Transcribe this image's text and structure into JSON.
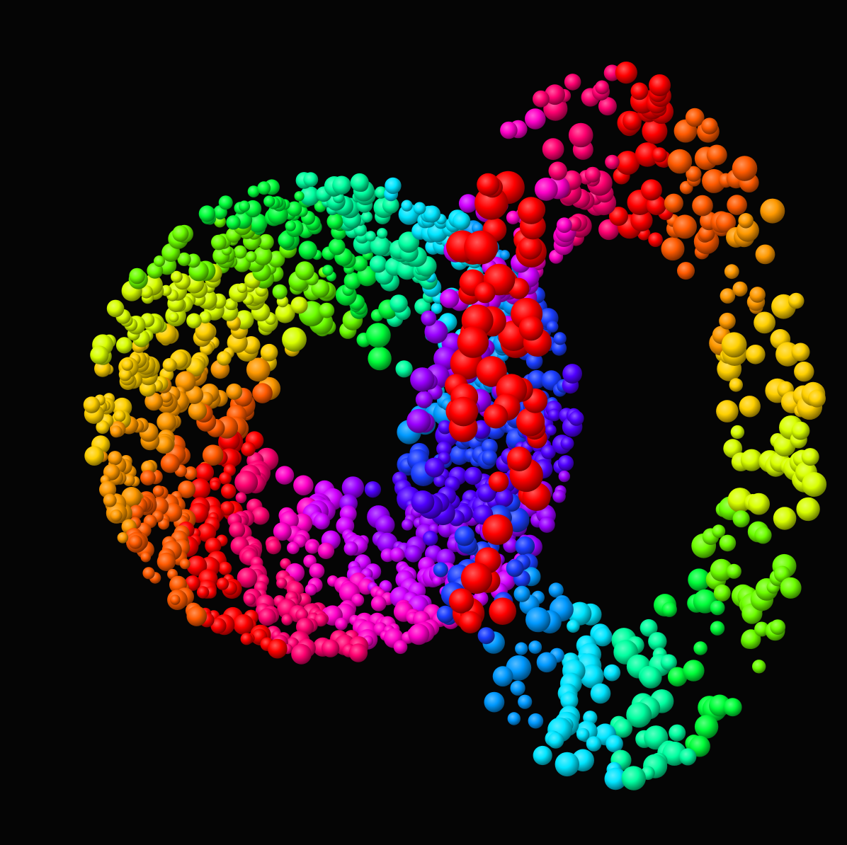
{
  "scene": {
    "background_color": "#050505",
    "palette": [
      "#ff0000",
      "#ff5a00",
      "#ff9900",
      "#ffd000",
      "#d8ff00",
      "#6dff00",
      "#00ff3a",
      "#00ffa0",
      "#00e5ff",
      "#0099ff",
      "#1a3dff",
      "#5000ff",
      "#9a00ff",
      "#d100ff",
      "#ff00c8",
      "#ff0070"
    ],
    "shapes": [
      {
        "name": "left-ring-sphere-cluster",
        "kind": "ring",
        "visible_text": ""
      },
      {
        "name": "right-ring-sphere-cluster",
        "kind": "ring",
        "visible_text": ""
      }
    ]
  }
}
